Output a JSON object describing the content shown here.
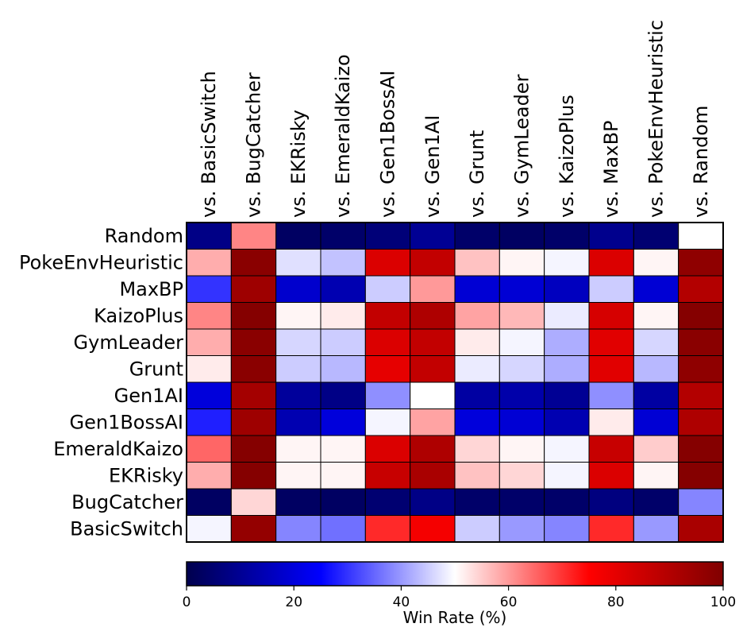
{
  "chart_data": {
    "type": "heatmap",
    "title": "",
    "columns": [
      "vs. BasicSwitch",
      "vs. BugCatcher",
      "vs. EKRisky",
      "vs. EmeraldKaizo",
      "vs. Gen1BossAI",
      "vs. Gen1AI",
      "vs. Grunt",
      "vs. GymLeader",
      "vs. KaizoPlus",
      "vs. MaxBP",
      "vs. PokeEnvHeuristic",
      "vs. Random"
    ],
    "rows": [
      "Random",
      "PokeEnvHeuristic",
      "MaxBP",
      "KaizoPlus",
      "GymLeader",
      "Grunt",
      "Gen1AI",
      "Gen1BossAI",
      "EmeraldKaizo",
      "EKRisky",
      "BugCatcher",
      "BasicSwitch"
    ],
    "values": [
      [
        8,
        62,
        3,
        4,
        6,
        10,
        4,
        3,
        4,
        9,
        5,
        50
      ],
      [
        58,
        98,
        47,
        44,
        82,
        87,
        56,
        51,
        49,
        82,
        51,
        97
      ],
      [
        30,
        94,
        18,
        14,
        45,
        60,
        19,
        19,
        16,
        45,
        19,
        90
      ],
      [
        62,
        99,
        51,
        52,
        87,
        91,
        59,
        57,
        48,
        83,
        51,
        99
      ],
      [
        58,
        98,
        46,
        45,
        82,
        87,
        52,
        49,
        42,
        81,
        46,
        98
      ],
      [
        52,
        98,
        45,
        43,
        80,
        87,
        48,
        46,
        42,
        81,
        43,
        97
      ],
      [
        20,
        93,
        11,
        8,
        39,
        50,
        12,
        13,
        10,
        39,
        12,
        90
      ],
      [
        28,
        94,
        14,
        20,
        49,
        59,
        20,
        19,
        14,
        52,
        19,
        91
      ],
      [
        65,
        99,
        51,
        51,
        82,
        91,
        54,
        51,
        49,
        86,
        55,
        99
      ],
      [
        58,
        99,
        51,
        51,
        86,
        92,
        56,
        54,
        49,
        82,
        51,
        99
      ],
      [
        3,
        54,
        3,
        3,
        5,
        8,
        4,
        4,
        4,
        7,
        4,
        38
      ],
      [
        49,
        96,
        38,
        36,
        71,
        77,
        45,
        40,
        38,
        71,
        40,
        92
      ]
    ],
    "colorbar": {
      "label": "Win Rate (%)",
      "min": 0,
      "max": 100,
      "ticks": [
        0,
        20,
        40,
        60,
        80,
        100
      ],
      "colormap": "seismic"
    }
  }
}
